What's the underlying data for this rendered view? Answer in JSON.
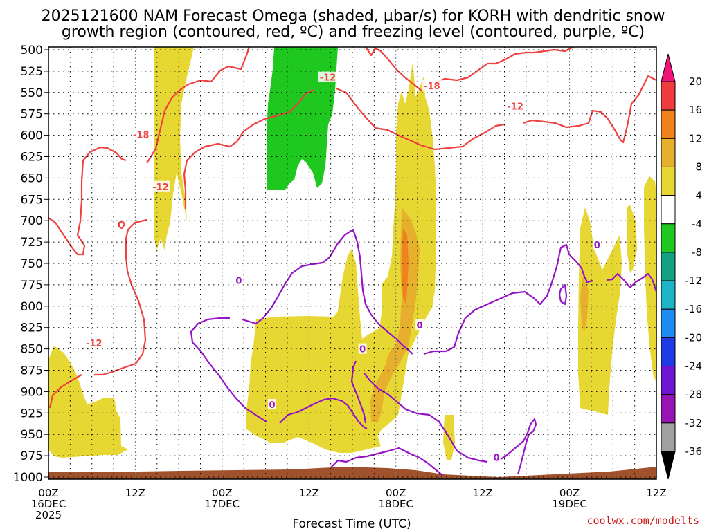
{
  "chart_data": {
    "type": "heatmap",
    "title_line1": "2025121600 NAM Forecast Omega (shaded, μbar/s) for KORH with dendritic snow",
    "title_line2": "growth region (contoured, red, ºC) and freezing level (contoured, purple, ºC)",
    "xlabel": "Forecast Time (UTC)",
    "watermark": "coolwx.com/modelts",
    "x_range_hours": [
      0,
      84
    ],
    "y_range_mb": [
      500,
      1000
    ],
    "y_ticks": [
      "500",
      "525",
      "550",
      "575",
      "600",
      "625",
      "650",
      "675",
      "700",
      "725",
      "750",
      "775",
      "800",
      "825",
      "850",
      "875",
      "900",
      "925",
      "950",
      "975",
      "1000"
    ],
    "x_ticks": [
      {
        "h": 0,
        "line1": "00Z",
        "line2": "16DEC",
        "line3": "2025"
      },
      {
        "h": 12,
        "line1": "12Z",
        "line2": "",
        "line3": ""
      },
      {
        "h": 24,
        "line1": "00Z",
        "line2": "17DEC",
        "line3": ""
      },
      {
        "h": 36,
        "line1": "12Z",
        "line2": "",
        "line3": ""
      },
      {
        "h": 48,
        "line1": "00Z",
        "line2": "18DEC",
        "line3": ""
      },
      {
        "h": 60,
        "line1": "12Z",
        "line2": "",
        "line3": ""
      },
      {
        "h": 72,
        "line1": "00Z",
        "line2": "19DEC",
        "line3": ""
      },
      {
        "h": 84,
        "line1": "12Z",
        "line2": "",
        "line3": ""
      }
    ],
    "colorbar": {
      "labels": [
        "20",
        "16",
        "12",
        "8",
        "4",
        "-4",
        "-8",
        "-12",
        "-16",
        "-20",
        "-24",
        "-28",
        "-32",
        "-36"
      ],
      "colors": [
        "#f0147a",
        "#f03c3c",
        "#f0821e",
        "#e6af2d",
        "#e6d732",
        "#ffffff",
        "#1ec81e",
        "#14a082",
        "#1eb4c8",
        "#1e8cf0",
        "#1e3ce6",
        "#6e14d2",
        "#9614b4",
        "#a0a0a0",
        "#000000"
      ]
    },
    "shading": [
      {
        "level": "4 to 8",
        "color": "#e6d732",
        "region": "12Z 16DEC-18Z 16DEC, 500-690 mb"
      },
      {
        "level": "4 to 8",
        "color": "#e6d732",
        "region": "00Z 16DEC-12Z 16DEC, 820-960 mb"
      },
      {
        "level": "4 to 8",
        "color": "#e6d732",
        "region": "03Z 17DEC-00Z 18DEC, 680-960 mb"
      },
      {
        "level": "4 to 8",
        "color": "#e6d732",
        "region": "00Z 18DEC-06Z 18DEC, 530-930 mb"
      },
      {
        "level": "4 to 8",
        "color": "#e6d732",
        "region": "00Z 19DEC-06Z 19DEC, 640-900 mb"
      },
      {
        "level": "8 to 12",
        "color": "#e6af2d",
        "region": "20Z 17DEC-03Z 18DEC, 640-915 mb"
      },
      {
        "level": "12 to 16",
        "color": "#f0821e",
        "region": "00Z 18DEC-01Z 18DEC, 680-740 mb"
      },
      {
        "level": "-4 to -8",
        "color": "#1ec81e",
        "region": "07Z 17DEC-16Z 17DEC, 500-630 mb"
      },
      {
        "level": "terrain",
        "color": "#a0522d",
        "region": "985-1000 mb"
      }
    ],
    "contours": [
      {
        "name": "dendritic -12C",
        "color": "#f04040",
        "value": -12
      },
      {
        "name": "dendritic -18C",
        "color": "#f04040",
        "value": -18
      },
      {
        "name": "freezing level 0C",
        "color": "#9614c8",
        "value": 0
      }
    ],
    "contour_labels": [
      {
        "text": "-18",
        "h": 12.8,
        "p": 599,
        "color": "#f04040"
      },
      {
        "text": "-12",
        "h": 15.5,
        "p": 660,
        "color": "#f04040"
      },
      {
        "text": "-12",
        "h": 6.3,
        "p": 843,
        "color": "#f04040"
      },
      {
        "text": "-12",
        "h": 38.6,
        "p": 532,
        "color": "#f04040"
      },
      {
        "text": "-18",
        "h": 53.0,
        "p": 542,
        "color": "#f04040"
      },
      {
        "text": "-12",
        "h": 64.5,
        "p": 566,
        "color": "#f04040"
      },
      {
        "text": "0",
        "h": 26.3,
        "p": 770,
        "color": "#9614c8"
      },
      {
        "text": "0",
        "h": 30.9,
        "p": 915,
        "color": "#9614c8"
      },
      {
        "text": "0",
        "h": 43.4,
        "p": 850,
        "color": "#9614c8"
      },
      {
        "text": "0",
        "h": 51.3,
        "p": 822,
        "color": "#9614c8"
      },
      {
        "text": "0",
        "h": 61.9,
        "p": 977,
        "color": "#9614c8"
      },
      {
        "text": "0",
        "h": 75.8,
        "p": 728,
        "color": "#9614c8"
      }
    ]
  }
}
